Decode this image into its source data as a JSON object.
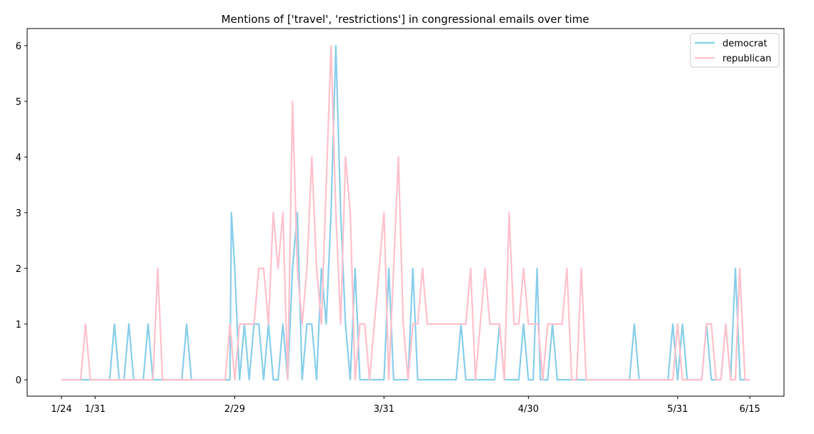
{
  "chart_data": {
    "type": "line",
    "title": "Mentions of ['travel', 'restrictions'] in congressional emails over time",
    "xlabel": "",
    "ylabel": "",
    "x_tick_labels": [
      "1/24",
      "1/31",
      "2/29",
      "3/31",
      "4/30",
      "5/31",
      "6/15"
    ],
    "x_tick_days": [
      0,
      7,
      36,
      67,
      97,
      128,
      143
    ],
    "ylim": [
      0,
      6
    ],
    "y_ticks": [
      "0",
      "1",
      "2",
      "3",
      "4",
      "5",
      "6"
    ],
    "legend_position": "top-right",
    "grid": false,
    "series": [
      {
        "name": "democrat",
        "color": "#87ceeb",
        "points": [
          [
            0,
            0
          ],
          [
            10,
            0
          ],
          [
            11,
            1
          ],
          [
            12,
            0
          ],
          [
            13,
            0
          ],
          [
            14,
            1
          ],
          [
            15,
            0
          ],
          [
            17,
            0
          ],
          [
            18,
            1
          ],
          [
            19,
            0
          ],
          [
            25,
            0
          ],
          [
            26,
            1
          ],
          [
            27,
            0
          ],
          [
            35,
            0
          ],
          [
            35.3,
            3
          ],
          [
            36,
            2
          ],
          [
            37,
            0
          ],
          [
            38,
            1
          ],
          [
            39,
            0
          ],
          [
            40,
            1
          ],
          [
            41,
            1
          ],
          [
            42,
            0
          ],
          [
            43,
            1
          ],
          [
            44,
            0
          ],
          [
            45,
            0
          ],
          [
            46,
            1
          ],
          [
            47,
            0
          ],
          [
            48,
            2
          ],
          [
            49,
            3
          ],
          [
            50,
            0
          ],
          [
            51,
            1
          ],
          [
            52,
            1
          ],
          [
            53,
            0
          ],
          [
            54,
            2
          ],
          [
            55,
            1
          ],
          [
            56,
            3
          ],
          [
            57,
            6
          ],
          [
            58,
            3
          ],
          [
            59,
            1
          ],
          [
            60,
            0
          ],
          [
            61,
            2
          ],
          [
            62,
            0
          ],
          [
            66,
            0
          ],
          [
            67,
            0
          ],
          [
            68,
            2
          ],
          [
            69,
            0
          ],
          [
            72,
            0
          ],
          [
            73,
            2
          ],
          [
            74,
            0
          ],
          [
            82,
            0
          ],
          [
            83,
            1
          ],
          [
            84,
            0
          ],
          [
            90,
            0
          ],
          [
            91,
            1
          ],
          [
            92,
            0
          ],
          [
            95,
            0
          ],
          [
            96,
            1
          ],
          [
            97,
            0
          ],
          [
            98,
            0
          ],
          [
            98.8,
            2
          ],
          [
            99.5,
            0
          ],
          [
            101,
            0
          ],
          [
            102,
            1
          ],
          [
            103,
            0
          ],
          [
            118,
            0
          ],
          [
            119,
            1
          ],
          [
            120,
            0
          ],
          [
            126,
            0
          ],
          [
            127,
            1
          ],
          [
            128,
            0
          ],
          [
            129,
            1
          ],
          [
            130,
            0
          ],
          [
            133,
            0
          ],
          [
            134,
            1
          ],
          [
            135,
            0
          ],
          [
            137,
            0
          ],
          [
            138,
            1
          ],
          [
            139,
            0
          ],
          [
            140,
            2
          ],
          [
            141,
            0
          ],
          [
            143,
            0
          ]
        ]
      },
      {
        "name": "republican",
        "color": "#ffc0cb",
        "points": [
          [
            0,
            0
          ],
          [
            4,
            0
          ],
          [
            5,
            1
          ],
          [
            6,
            0
          ],
          [
            19,
            0
          ],
          [
            20,
            2
          ],
          [
            21,
            0
          ],
          [
            34,
            0
          ],
          [
            35,
            1
          ],
          [
            36,
            0
          ],
          [
            37,
            1
          ],
          [
            40,
            1
          ],
          [
            41,
            2
          ],
          [
            42,
            2
          ],
          [
            43,
            1
          ],
          [
            44,
            3
          ],
          [
            45,
            2
          ],
          [
            46,
            3
          ],
          [
            47,
            0
          ],
          [
            48,
            5
          ],
          [
            49,
            2
          ],
          [
            50,
            1
          ],
          [
            51,
            2
          ],
          [
            52,
            4
          ],
          [
            53,
            2
          ],
          [
            54,
            1
          ],
          [
            56,
            6
          ],
          [
            57,
            3
          ],
          [
            58,
            1
          ],
          [
            59,
            4
          ],
          [
            60,
            3
          ],
          [
            61,
            0
          ],
          [
            62,
            1
          ],
          [
            63,
            1
          ],
          [
            64,
            0
          ],
          [
            65,
            1
          ],
          [
            66,
            2
          ],
          [
            67,
            3
          ],
          [
            68,
            0
          ],
          [
            69,
            2
          ],
          [
            70,
            4
          ],
          [
            71,
            1
          ],
          [
            72,
            0
          ],
          [
            73,
            1
          ],
          [
            74,
            1
          ],
          [
            75,
            2
          ],
          [
            76,
            1
          ],
          [
            84,
            1
          ],
          [
            85,
            2
          ],
          [
            86,
            0
          ],
          [
            87,
            1
          ],
          [
            88,
            2
          ],
          [
            89,
            1
          ],
          [
            91,
            1
          ],
          [
            92,
            0
          ],
          [
            93,
            3
          ],
          [
            94,
            1
          ],
          [
            95,
            1
          ],
          [
            96,
            2
          ],
          [
            97,
            1
          ],
          [
            98,
            1
          ],
          [
            99,
            1
          ],
          [
            100,
            0
          ],
          [
            101,
            1
          ],
          [
            104,
            1
          ],
          [
            105,
            2
          ],
          [
            106,
            0
          ],
          [
            107,
            0
          ],
          [
            108,
            2
          ],
          [
            109,
            0
          ],
          [
            118,
            0
          ],
          [
            127,
            0
          ],
          [
            128,
            1
          ],
          [
            129,
            0
          ],
          [
            133,
            0
          ],
          [
            134,
            1
          ],
          [
            135,
            1
          ],
          [
            136,
            0
          ],
          [
            137,
            0
          ],
          [
            138,
            1
          ],
          [
            139,
            0
          ],
          [
            140,
            0
          ],
          [
            140.9,
            2
          ],
          [
            142,
            0
          ],
          [
            143,
            0
          ]
        ]
      }
    ]
  }
}
